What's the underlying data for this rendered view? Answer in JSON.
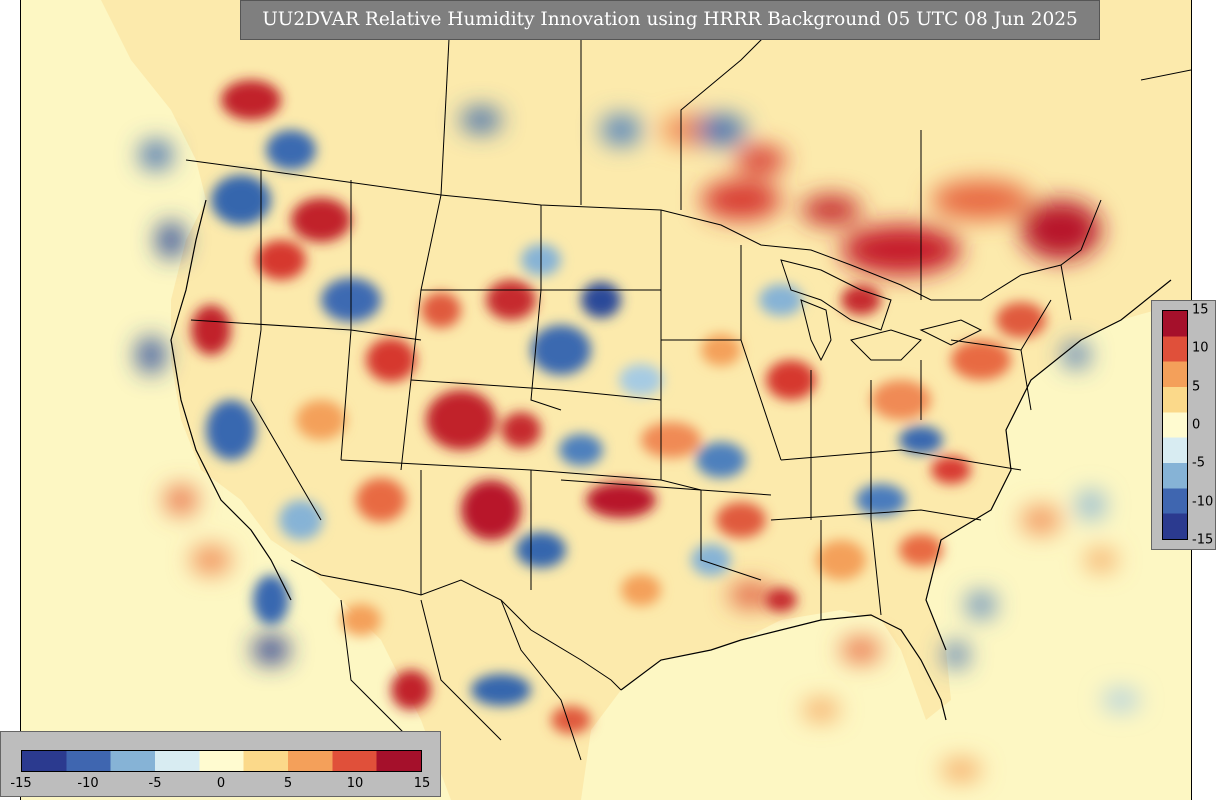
{
  "title": "UU2DVAR Relative Humidity Innovation using HRRR Background 05 UTC 08 Jun 2025",
  "colorbar": {
    "vmin": -15,
    "vmax": 15,
    "vertical_ticks": [
      "15",
      "10",
      "5",
      "0",
      "-5",
      "-10",
      "-15"
    ],
    "horizontal_ticks": [
      "-15",
      "-10",
      "-5",
      "0",
      "5",
      "10",
      "15"
    ],
    "stops": [
      "#2b3a8f",
      "#3f66b0",
      "#86b3d6",
      "#d8ecf2",
      "#fffbd0",
      "#fbd98a",
      "#f4a05a",
      "#e0503a",
      "#a5102b"
    ]
  },
  "colors": {
    "ocean": "#fdf7c3",
    "panel": "#bdbdbd",
    "title_bg": "#7f7f7f",
    "boundaries": "#000000"
  }
}
